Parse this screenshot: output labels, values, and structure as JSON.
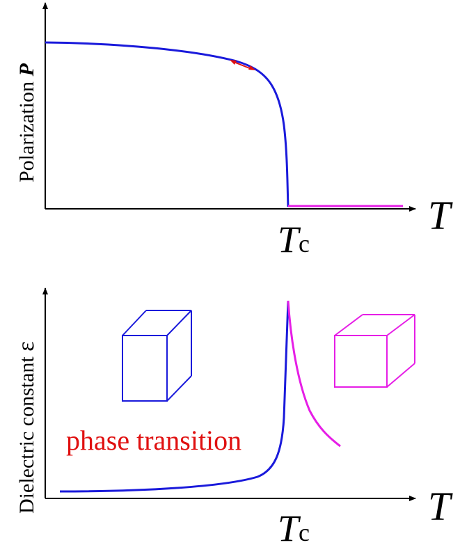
{
  "colors": {
    "ferro": "#1a1adb",
    "para": "#e61ee6",
    "accent": "#e01010",
    "axis": "#000000"
  },
  "top_panel": {
    "ylabel_text": "Polarization ",
    "ylabel_symbol": "P",
    "x_axis_symbol": "T",
    "tc_main": "T",
    "tc_sub": "c"
  },
  "bottom_panel": {
    "ylabel_text": "Dielectric constant ",
    "ylabel_symbol": "ε",
    "x_axis_symbol": "T",
    "tc_main": "T",
    "tc_sub": "c",
    "annotation": "phase transition",
    "icons": {
      "left": "tetragonal-cell-icon",
      "right": "cubic-cell-icon"
    }
  }
}
